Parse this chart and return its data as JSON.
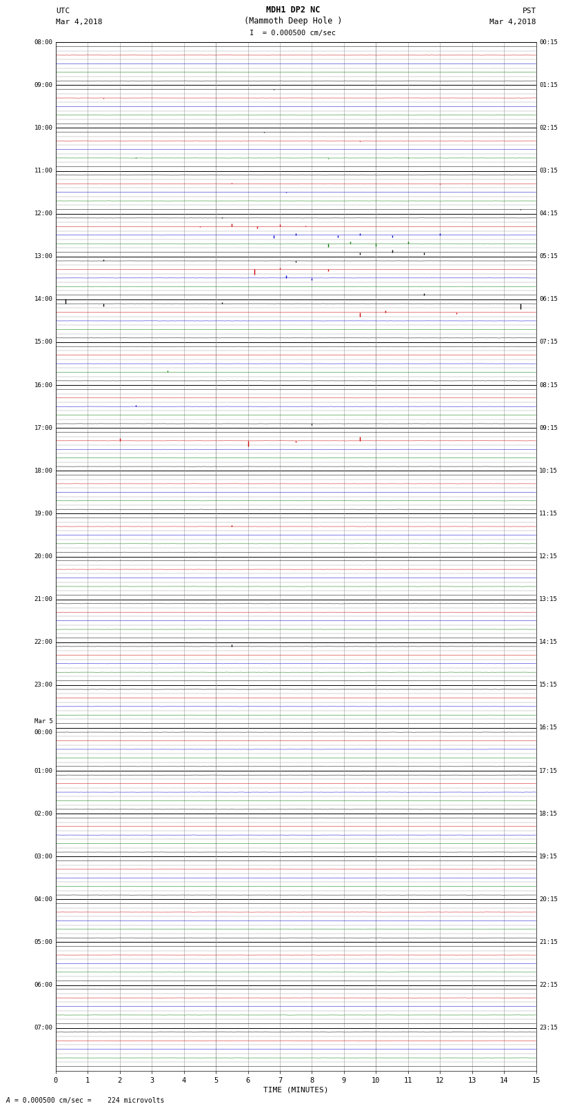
{
  "title_line1": "MDH1 DP2 NC",
  "title_line2": "(Mammoth Deep Hole )",
  "title_line3": "I = 0.000500 cm/sec",
  "label_left_top": "UTC",
  "label_left_date": "Mar 4,2018",
  "label_right_top": "PST",
  "label_right_date": "Mar 4,2018",
  "xlabel": "TIME (MINUTES)",
  "footer_a": "= 0.000500 cm/sec =    224 microvolts",
  "num_hours": 24,
  "traces_per_hour": 5,
  "minutes_per_row": 15,
  "row_labels_left": [
    "08:00",
    "09:00",
    "10:00",
    "11:00",
    "12:00",
    "13:00",
    "14:00",
    "15:00",
    "16:00",
    "17:00",
    "18:00",
    "19:00",
    "20:00",
    "21:00",
    "22:00",
    "23:00",
    "Mar 5\n00:00",
    "01:00",
    "02:00",
    "03:00",
    "04:00",
    "05:00",
    "06:00",
    "07:00"
  ],
  "row_labels_right": [
    "00:15",
    "01:15",
    "02:15",
    "03:15",
    "04:15",
    "05:15",
    "06:15",
    "07:15",
    "08:15",
    "09:15",
    "10:15",
    "11:15",
    "12:15",
    "13:15",
    "14:15",
    "15:15",
    "16:15",
    "17:15",
    "18:15",
    "19:15",
    "20:15",
    "21:15",
    "22:15",
    "23:15"
  ],
  "trace_colors_cycle": [
    "#000000",
    "#cc0000",
    "#0000cc",
    "#007700",
    "#000000"
  ],
  "bg_color": "#ffffff",
  "major_grid_color": "#000000",
  "minor_grid_color": "#999999",
  "noise_amplitude": 0.008,
  "spike_events": [
    {
      "hour": 9,
      "trace": 0,
      "minute": 6.8,
      "color": "#000000",
      "amp": 0.06,
      "dir": 1
    },
    {
      "hour": 9,
      "trace": 1,
      "minute": 1.5,
      "color": "#cc0000",
      "amp": 0.04,
      "dir": -1
    },
    {
      "hour": 9,
      "trace": 2,
      "minute": 3.0,
      "color": "#0000cc",
      "amp": 0.05,
      "dir": 1
    },
    {
      "hour": 10,
      "trace": 0,
      "minute": 6.5,
      "color": "#000000",
      "amp": 0.07,
      "dir": 1
    },
    {
      "hour": 10,
      "trace": 1,
      "minute": 9.5,
      "color": "#cc0000",
      "amp": 0.05,
      "dir": -1
    },
    {
      "hour": 10,
      "trace": 3,
      "minute": 2.5,
      "color": "#007700",
      "amp": 0.04,
      "dir": 1
    },
    {
      "hour": 10,
      "trace": 3,
      "minute": 8.5,
      "color": "#007700",
      "amp": 0.05,
      "dir": -1
    },
    {
      "hour": 10,
      "trace": 3,
      "minute": 11.0,
      "color": "#007700",
      "amp": 0.04,
      "dir": 1
    },
    {
      "hour": 11,
      "trace": 1,
      "minute": 5.5,
      "color": "#cc0000",
      "amp": 0.06,
      "dir": 1
    },
    {
      "hour": 11,
      "trace": 1,
      "minute": 12.0,
      "color": "#cc0000",
      "amp": 0.05,
      "dir": -1
    },
    {
      "hour": 11,
      "trace": 2,
      "minute": 7.2,
      "color": "#0000cc",
      "amp": 0.07,
      "dir": 1
    },
    {
      "hour": 11,
      "trace": 4,
      "minute": 14.5,
      "color": "#000000",
      "amp": 0.06,
      "dir": -1
    },
    {
      "hour": 12,
      "trace": 0,
      "minute": 5.2,
      "color": "#000000",
      "amp": 0.08,
      "dir": 1
    },
    {
      "hour": 12,
      "trace": 1,
      "minute": 4.5,
      "color": "#cc0000",
      "amp": 0.06,
      "dir": -1
    },
    {
      "hour": 12,
      "trace": 1,
      "minute": 7.8,
      "color": "#cc0000",
      "amp": 0.07,
      "dir": 1
    },
    {
      "hour": 12,
      "trace": 2,
      "minute": 6.8,
      "color": "#0000cc",
      "amp": 0.35,
      "dir": -1
    },
    {
      "hour": 12,
      "trace": 2,
      "minute": 7.5,
      "color": "#0000cc",
      "amp": 0.25,
      "dir": 1
    },
    {
      "hour": 12,
      "trace": 2,
      "minute": 8.8,
      "color": "#0000cc",
      "amp": 0.3,
      "dir": -1
    },
    {
      "hour": 12,
      "trace": 2,
      "minute": 9.5,
      "color": "#0000cc",
      "amp": 0.22,
      "dir": 1
    },
    {
      "hour": 12,
      "trace": 2,
      "minute": 10.5,
      "color": "#0000cc",
      "amp": 0.28,
      "dir": -1
    },
    {
      "hour": 12,
      "trace": 2,
      "minute": 12.0,
      "color": "#0000cc",
      "amp": 0.2,
      "dir": 1
    },
    {
      "hour": 12,
      "trace": 1,
      "minute": 5.5,
      "color": "#cc0000",
      "amp": 0.32,
      "dir": 1
    },
    {
      "hour": 12,
      "trace": 1,
      "minute": 6.3,
      "color": "#cc0000",
      "amp": 0.25,
      "dir": -1
    },
    {
      "hour": 12,
      "trace": 1,
      "minute": 7.0,
      "color": "#cc0000",
      "amp": 0.28,
      "dir": 1
    },
    {
      "hour": 12,
      "trace": 3,
      "minute": 8.5,
      "color": "#007700",
      "amp": 0.35,
      "dir": -1
    },
    {
      "hour": 12,
      "trace": 3,
      "minute": 9.2,
      "color": "#007700",
      "amp": 0.28,
      "dir": 1
    },
    {
      "hour": 12,
      "trace": 3,
      "minute": 10.0,
      "color": "#007700",
      "amp": 0.32,
      "dir": -1
    },
    {
      "hour": 12,
      "trace": 3,
      "minute": 11.0,
      "color": "#007700",
      "amp": 0.25,
      "dir": 1
    },
    {
      "hour": 12,
      "trace": 4,
      "minute": 9.5,
      "color": "#000000",
      "amp": 0.3,
      "dir": -1
    },
    {
      "hour": 12,
      "trace": 4,
      "minute": 10.5,
      "color": "#000000",
      "amp": 0.25,
      "dir": 1
    },
    {
      "hour": 12,
      "trace": 4,
      "minute": 11.5,
      "color": "#000000",
      "amp": 0.28,
      "dir": -1
    },
    {
      "hour": 13,
      "trace": 0,
      "minute": 1.5,
      "color": "#000000",
      "amp": 0.2,
      "dir": 1
    },
    {
      "hour": 13,
      "trace": 0,
      "minute": 7.5,
      "color": "#000000",
      "amp": 0.18,
      "dir": -1
    },
    {
      "hour": 13,
      "trace": 1,
      "minute": 6.2,
      "color": "#cc0000",
      "amp": 0.65,
      "dir": -1
    },
    {
      "hour": 13,
      "trace": 1,
      "minute": 7.0,
      "color": "#cc0000",
      "amp": 0.22,
      "dir": 1
    },
    {
      "hour": 13,
      "trace": 1,
      "minute": 8.5,
      "color": "#cc0000",
      "amp": 0.18,
      "dir": -1
    },
    {
      "hour": 13,
      "trace": 2,
      "minute": 7.2,
      "color": "#0000cc",
      "amp": 0.28,
      "dir": 1
    },
    {
      "hour": 13,
      "trace": 2,
      "minute": 8.0,
      "color": "#0000cc",
      "amp": 0.22,
      "dir": -1
    },
    {
      "hour": 13,
      "trace": 4,
      "minute": 11.5,
      "color": "#000000",
      "amp": 0.22,
      "dir": 1
    },
    {
      "hour": 14,
      "trace": 0,
      "minute": 0.3,
      "color": "#000000",
      "amp": 0.6,
      "dir": 1
    },
    {
      "hour": 14,
      "trace": 0,
      "minute": 1.5,
      "color": "#000000",
      "amp": 0.35,
      "dir": -1
    },
    {
      "hour": 14,
      "trace": 0,
      "minute": 5.2,
      "color": "#000000",
      "amp": 0.2,
      "dir": 1
    },
    {
      "hour": 14,
      "trace": 1,
      "minute": 9.5,
      "color": "#cc0000",
      "amp": 0.5,
      "dir": -1
    },
    {
      "hour": 14,
      "trace": 1,
      "minute": 10.3,
      "color": "#cc0000",
      "amp": 0.22,
      "dir": 1
    },
    {
      "hour": 14,
      "trace": 1,
      "minute": 12.5,
      "color": "#cc0000",
      "amp": 0.18,
      "dir": -1
    },
    {
      "hour": 14,
      "trace": 0,
      "minute": 14.5,
      "color": "#000000",
      "amp": 0.6,
      "dir": -1
    },
    {
      "hour": 15,
      "trace": 3,
      "minute": 3.5,
      "color": "#007700",
      "amp": 0.22,
      "dir": 1
    },
    {
      "hour": 16,
      "trace": 2,
      "minute": 2.5,
      "color": "#0000cc",
      "amp": 0.18,
      "dir": 1
    },
    {
      "hour": 16,
      "trace": 4,
      "minute": 8.0,
      "color": "#000000",
      "amp": 0.18,
      "dir": -1
    },
    {
      "hour": 17,
      "trace": 1,
      "minute": 2.0,
      "color": "#cc0000",
      "amp": 0.28,
      "dir": 1
    },
    {
      "hour": 17,
      "trace": 1,
      "minute": 7.5,
      "color": "#cc0000",
      "amp": 0.2,
      "dir": -1
    },
    {
      "hour": 17,
      "trace": 1,
      "minute": 6.0,
      "color": "#cc0000",
      "amp": 0.65,
      "dir": -1
    },
    {
      "hour": 17,
      "trace": 1,
      "minute": 9.5,
      "color": "#cc0000",
      "amp": 0.5,
      "dir": 1
    },
    {
      "hour": 19,
      "trace": 1,
      "minute": 5.5,
      "color": "#cc0000",
      "amp": 0.2,
      "dir": 1
    },
    {
      "hour": 22,
      "trace": 0,
      "minute": 5.5,
      "color": "#000000",
      "amp": 0.22,
      "dir": 1
    }
  ]
}
